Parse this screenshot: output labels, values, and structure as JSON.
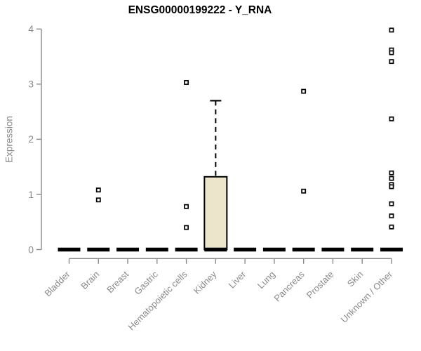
{
  "chart_data": {
    "type": "boxplot",
    "title": "ENSG00000199222 - Y_RNA",
    "xlabel": "",
    "ylabel": "Expression",
    "ylim": [
      0,
      4
    ],
    "yticks": [
      0,
      1,
      2,
      3,
      4
    ],
    "grid": false,
    "legend": null,
    "categories": [
      "Bladder",
      "Brain",
      "Breast",
      "Gastric",
      "Hematopoietic cells",
      "Kidney",
      "Liver",
      "Lung",
      "Pancreas",
      "Prostate",
      "Skin",
      "Unknown / Other"
    ],
    "boxes": [
      {
        "category": "Bladder",
        "median": 0,
        "q1": 0,
        "q3": 0,
        "whisker_low": 0,
        "whisker_high": 0,
        "outliers": []
      },
      {
        "category": "Brain",
        "median": 0,
        "q1": 0,
        "q3": 0,
        "whisker_low": 0,
        "whisker_high": 0,
        "outliers": [
          1.08,
          0.9
        ]
      },
      {
        "category": "Breast",
        "median": 0,
        "q1": 0,
        "q3": 0,
        "whisker_low": 0,
        "whisker_high": 0,
        "outliers": []
      },
      {
        "category": "Gastric",
        "median": 0,
        "q1": 0,
        "q3": 0,
        "whisker_low": 0,
        "whisker_high": 0,
        "outliers": []
      },
      {
        "category": "Hematopoietic cells",
        "median": 0,
        "q1": 0,
        "q3": 0,
        "whisker_low": 0,
        "whisker_high": 0,
        "outliers": [
          3.03,
          0.78,
          0.4
        ]
      },
      {
        "category": "Kidney",
        "median": 0,
        "q1": 0,
        "q3": 1.32,
        "whisker_low": 0,
        "whisker_high": 2.7,
        "outliers": []
      },
      {
        "category": "Liver",
        "median": 0,
        "q1": 0,
        "q3": 0,
        "whisker_low": 0,
        "whisker_high": 0,
        "outliers": []
      },
      {
        "category": "Lung",
        "median": 0,
        "q1": 0,
        "q3": 0,
        "whisker_low": 0,
        "whisker_high": 0,
        "outliers": []
      },
      {
        "category": "Pancreas",
        "median": 0,
        "q1": 0,
        "q3": 0,
        "whisker_low": 0,
        "whisker_high": 0,
        "outliers": [
          2.87,
          1.06
        ]
      },
      {
        "category": "Prostate",
        "median": 0,
        "q1": 0,
        "q3": 0,
        "whisker_low": 0,
        "whisker_high": 0,
        "outliers": []
      },
      {
        "category": "Skin",
        "median": 0,
        "q1": 0,
        "q3": 0,
        "whisker_low": 0,
        "whisker_high": 0,
        "outliers": []
      },
      {
        "category": "Unknown / Other",
        "median": 0,
        "q1": 0,
        "q3": 0,
        "whisker_low": 0,
        "whisker_high": 0,
        "outliers": [
          3.98,
          3.62,
          3.57,
          3.41,
          2.37,
          1.39,
          1.29,
          1.18,
          1.14,
          0.83,
          0.61,
          0.41
        ]
      }
    ],
    "colors": {
      "background": "#FFFFFF",
      "box_fill": "#ECE5CB",
      "box_border": "#000000",
      "median": "#000000",
      "whisker": "#000000",
      "outlier": "#000000",
      "axis": "#8A8A8A",
      "tick_text": "#8A8A8A",
      "title_text": "#000000"
    }
  }
}
